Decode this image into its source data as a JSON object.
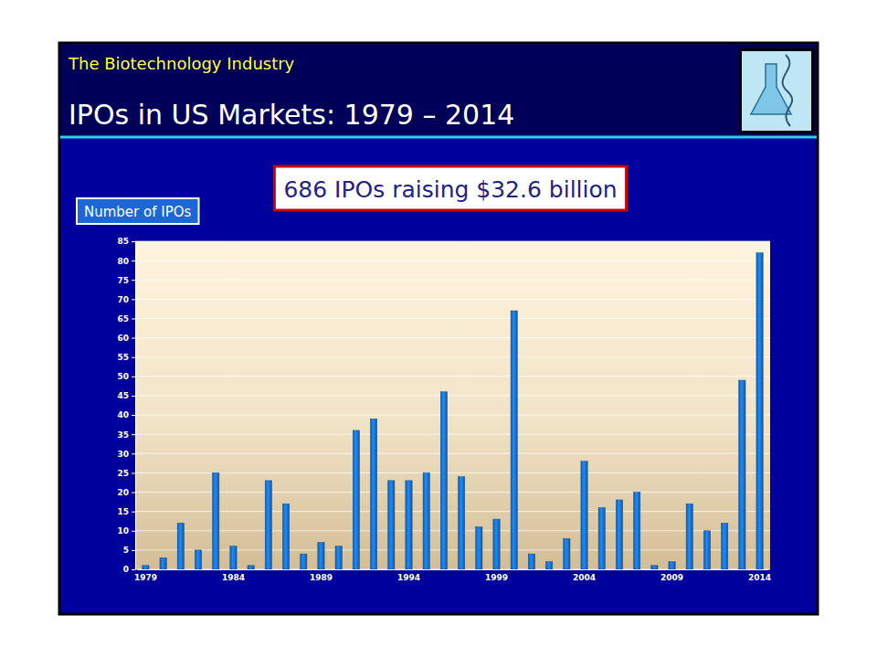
{
  "chart_data": {
    "type": "bar",
    "subtitle": "The Biotechnology Industry",
    "title": "IPOs in US Markets: 1979 – 2014",
    "annotation": "686 IPOs raising $32.6 billion",
    "y_label": "Number of IPOs",
    "categories": [
      "1979",
      null,
      null,
      null,
      null,
      "1984",
      null,
      null,
      null,
      null,
      "1989",
      null,
      null,
      null,
      null,
      "1994",
      null,
      null,
      null,
      null,
      "1999",
      null,
      null,
      null,
      null,
      "2004",
      null,
      null,
      null,
      null,
      "2009",
      null,
      null,
      null,
      null,
      "2014"
    ],
    "values": [
      1,
      3,
      12,
      5,
      25,
      6,
      1,
      23,
      17,
      4,
      7,
      6,
      36,
      39,
      23,
      23,
      25,
      46,
      24,
      11,
      13,
      67,
      4,
      2,
      8,
      28,
      16,
      18,
      20,
      1,
      2,
      17,
      10,
      12,
      49,
      82
    ],
    "color": "#1874d2",
    "ylim": [
      0,
      85
    ],
    "yticks": [
      0,
      5,
      10,
      15,
      20,
      25,
      30,
      35,
      40,
      45,
      50,
      55,
      60,
      65,
      70,
      75,
      80,
      85
    ],
    "grid": true
  }
}
